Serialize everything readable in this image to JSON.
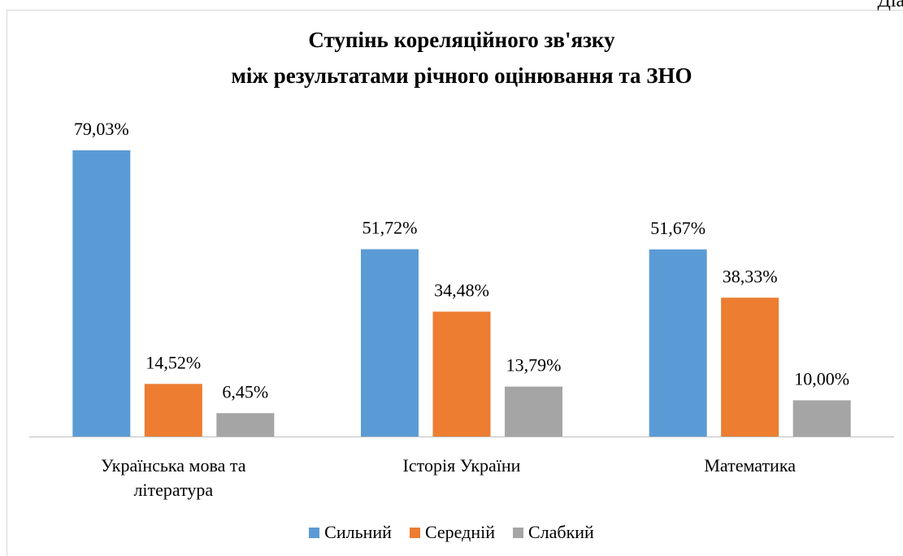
{
  "caption": "Діаг",
  "chart_data": {
    "type": "bar",
    "title": [
      "Ступінь кореляційного зв'язку",
      "між результатами річного оцінювання та ЗНО"
    ],
    "categories": [
      "Українська мова та література",
      "Історія України",
      "Математика"
    ],
    "series": [
      {
        "name": "Сильний",
        "color": "#5b9bd5",
        "values": [
          79.03,
          51.72,
          51.67
        ],
        "value_labels": [
          "79,03%",
          "51,72%",
          "51,67%"
        ]
      },
      {
        "name": "Середній",
        "color": "#ed7d31",
        "values": [
          14.52,
          34.48,
          38.33
        ],
        "value_labels": [
          "14,52%",
          "34,48%",
          "38,33%"
        ]
      },
      {
        "name": "Слабкий",
        "color": "#a5a5a5",
        "values": [
          6.45,
          13.79,
          10.0
        ],
        "value_labels": [
          "6,45%",
          "13,79%",
          "10,00%"
        ]
      }
    ],
    "ylim": [
      0,
      90
    ],
    "legend": "bottom"
  }
}
